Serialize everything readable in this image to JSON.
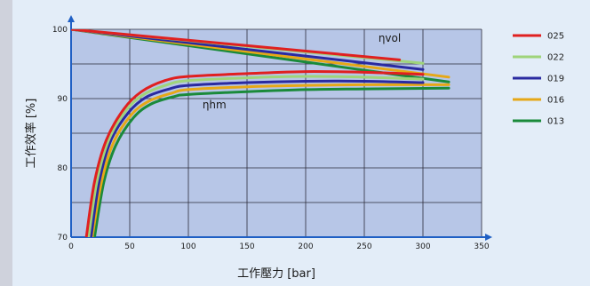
{
  "chart_data": {
    "type": "line",
    "xlabel": "工作壓力 [bar]",
    "ylabel": "工作效率 [%]",
    "xlim": [
      0,
      350
    ],
    "ylim": [
      70,
      100
    ],
    "xticks": [
      0,
      50,
      100,
      150,
      200,
      250,
      300,
      350
    ],
    "yticks": [
      70,
      80,
      90,
      100
    ],
    "grid": true,
    "legend_position": "right",
    "annotations": [
      {
        "text": "ηvol",
        "x": 262,
        "y": 98.2
      },
      {
        "text": "ηhm",
        "x": 112,
        "y": 88.6
      }
    ],
    "series": [
      {
        "name": "025",
        "color": "#e02020",
        "vol": [
          [
            0,
            100
          ],
          [
            280,
            95.6
          ]
        ],
        "hm": [
          [
            13,
            70
          ],
          [
            20,
            78
          ],
          [
            30,
            84
          ],
          [
            45,
            88.5
          ],
          [
            60,
            91
          ],
          [
            80,
            92.6
          ],
          [
            100,
            93.2
          ],
          [
            150,
            93.6
          ],
          [
            200,
            93.9
          ],
          [
            250,
            93.8
          ],
          [
            300,
            93.5
          ]
        ]
      },
      {
        "name": "022",
        "color": "#9fd47a",
        "vol": [
          [
            0,
            100
          ],
          [
            300,
            95.1
          ]
        ],
        "hm": [
          [
            15,
            70
          ],
          [
            22,
            78
          ],
          [
            32,
            84
          ],
          [
            47,
            88.3
          ],
          [
            62,
            90.6
          ],
          [
            82,
            92
          ],
          [
            100,
            92.6
          ],
          [
            150,
            93.0
          ],
          [
            200,
            93.2
          ],
          [
            250,
            93.1
          ],
          [
            300,
            92.8
          ]
        ]
      },
      {
        "name": "019",
        "color": "#2a2aa0",
        "vol": [
          [
            0,
            100
          ],
          [
            300,
            94.2
          ]
        ],
        "hm": [
          [
            17,
            70
          ],
          [
            24,
            78
          ],
          [
            34,
            84
          ],
          [
            49,
            88
          ],
          [
            64,
            90.2
          ],
          [
            84,
            91.4
          ],
          [
            100,
            91.9
          ],
          [
            150,
            92.3
          ],
          [
            200,
            92.5
          ],
          [
            250,
            92.5
          ],
          [
            300,
            92.3
          ]
        ]
      },
      {
        "name": "016",
        "color": "#e6a817",
        "vol": [
          [
            0,
            100
          ],
          [
            322,
            93.1
          ]
        ],
        "hm": [
          [
            18,
            70
          ],
          [
            26,
            78
          ],
          [
            36,
            83.6
          ],
          [
            51,
            87.6
          ],
          [
            66,
            89.6
          ],
          [
            86,
            90.8
          ],
          [
            100,
            91.3
          ],
          [
            150,
            91.7
          ],
          [
            200,
            91.9
          ],
          [
            250,
            92.0
          ],
          [
            322,
            92.0
          ]
        ]
      },
      {
        "name": "013",
        "color": "#1a8a3a",
        "vol": [
          [
            0,
            100
          ],
          [
            322,
            92.4
          ]
        ],
        "hm": [
          [
            20,
            70
          ],
          [
            28,
            78
          ],
          [
            38,
            83.2
          ],
          [
            53,
            87.2
          ],
          [
            68,
            89.2
          ],
          [
            88,
            90.3
          ],
          [
            100,
            90.6
          ],
          [
            150,
            91.0
          ],
          [
            200,
            91.3
          ],
          [
            250,
            91.4
          ],
          [
            322,
            91.5
          ]
        ]
      }
    ]
  }
}
